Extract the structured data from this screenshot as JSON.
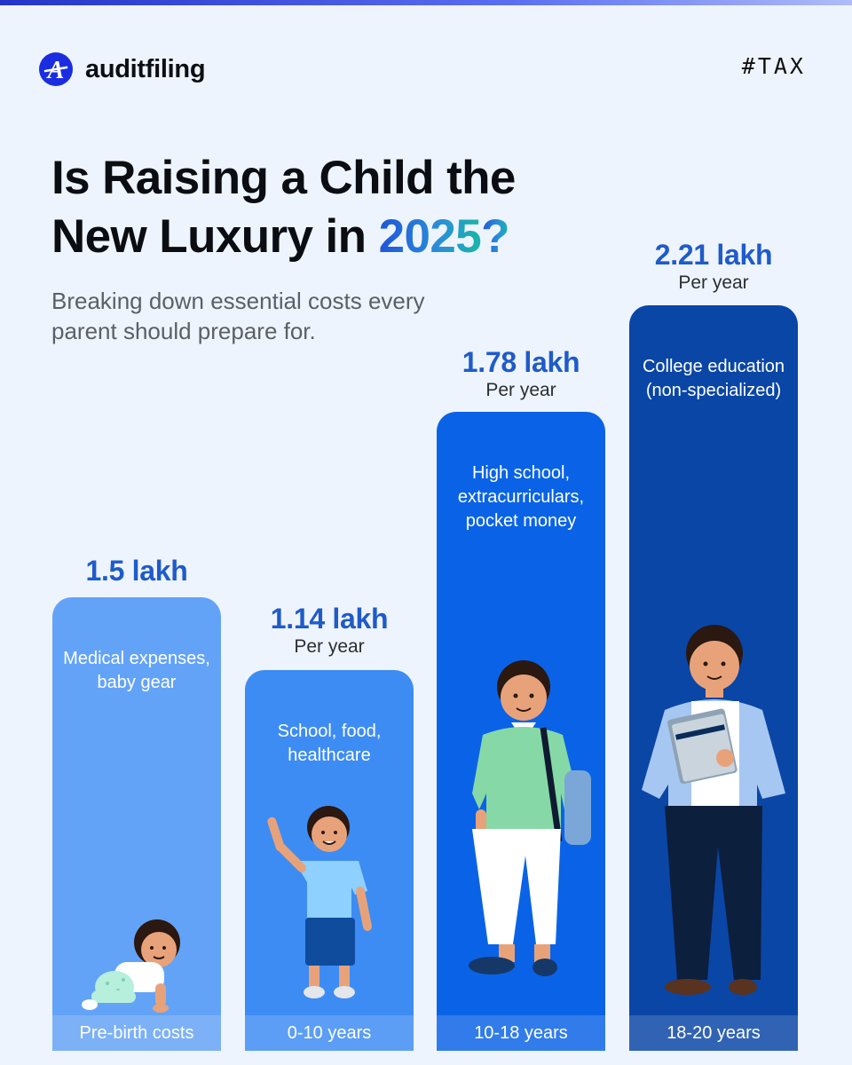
{
  "brand": {
    "name": "auditfiling",
    "hashtag": "#TAX"
  },
  "title": {
    "line1": "Is Raising a Child the",
    "line2_prefix": "New Luxury in ",
    "year": "2025",
    "question_mark": "?"
  },
  "subtitle": "Breaking down essential costs every parent should prepare for.",
  "colors": {
    "background": "#eef4fe",
    "accent": "#1f5bc9",
    "bar1": "#63a3f7",
    "bar2": "#3d8cf3",
    "bar3": "#0a63e6",
    "bar4": "#0a46a6"
  },
  "chart_data": {
    "type": "bar",
    "title": "Is Raising a Child the New Luxury in 2025?",
    "unit": "lakh",
    "categories": [
      "Pre-birth costs",
      "0-10 years",
      "10-18 years",
      "18-20 years"
    ],
    "values": [
      1.5,
      1.14,
      1.78,
      2.21
    ],
    "series": [
      {
        "name": "Cost",
        "values": [
          1.5,
          1.14,
          1.78,
          2.21
        ]
      }
    ],
    "items": [
      {
        "value_label": "1.5 lakh",
        "period": "",
        "description": "Medical expenses, baby gear",
        "category": "Pre-birth costs"
      },
      {
        "value_label": "1.14 lakh",
        "period": "Per year",
        "description": "School, food, healthcare",
        "category": "0-10 years"
      },
      {
        "value_label": "1.78 lakh",
        "period": "Per year",
        "description": "High school, extracurriculars, pocket money",
        "category": "10-18 years"
      },
      {
        "value_label": "2.21 lakh",
        "period": "Per year",
        "description": "College education (non-specialized)",
        "category": "18-20 years"
      }
    ],
    "xlabel": "",
    "ylabel": ""
  }
}
